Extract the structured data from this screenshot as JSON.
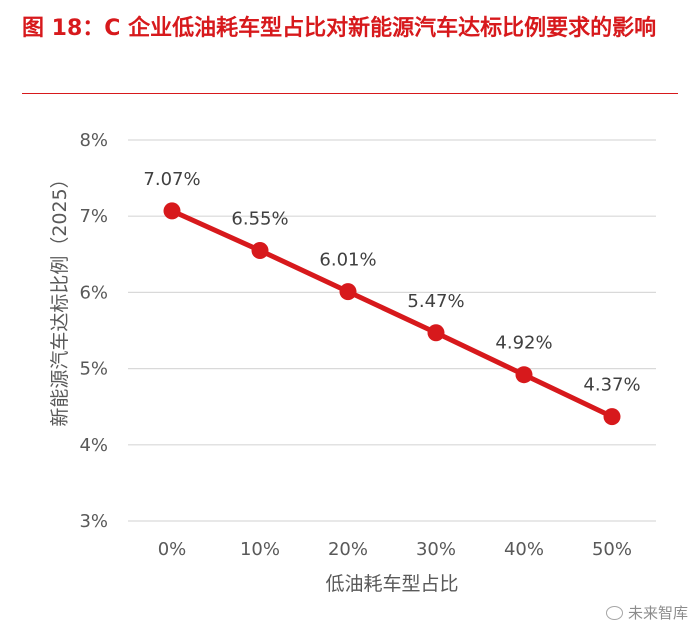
{
  "figure": {
    "title": "图 18：C 企业低油耗车型占比对新能源汽车达标比例要求的影响"
  },
  "watermark": {
    "text": "未来智库",
    "icon": "wechat-icon"
  },
  "chart_data": {
    "type": "line",
    "title": "",
    "xlabel": "低油耗车型占比",
    "ylabel": "新能源汽车达标比例（2025）",
    "categories": [
      "0%",
      "10%",
      "20%",
      "30%",
      "40%",
      "50%"
    ],
    "series": [
      {
        "values": [
          7.07,
          6.55,
          6.01,
          5.47,
          4.92,
          4.37
        ],
        "labels": [
          "7.07%",
          "6.55%",
          "6.01%",
          "5.47%",
          "4.92%",
          "4.37%"
        ],
        "color": "#d7191c"
      }
    ],
    "ylim": [
      3,
      8
    ],
    "yticks": [
      3,
      4,
      5,
      6,
      7,
      8
    ],
    "ytick_labels": [
      "3%",
      "4%",
      "5%",
      "6%",
      "7%",
      "8%"
    ],
    "grid": true,
    "gridline_color": "#d9d9d9",
    "legend": "none"
  }
}
